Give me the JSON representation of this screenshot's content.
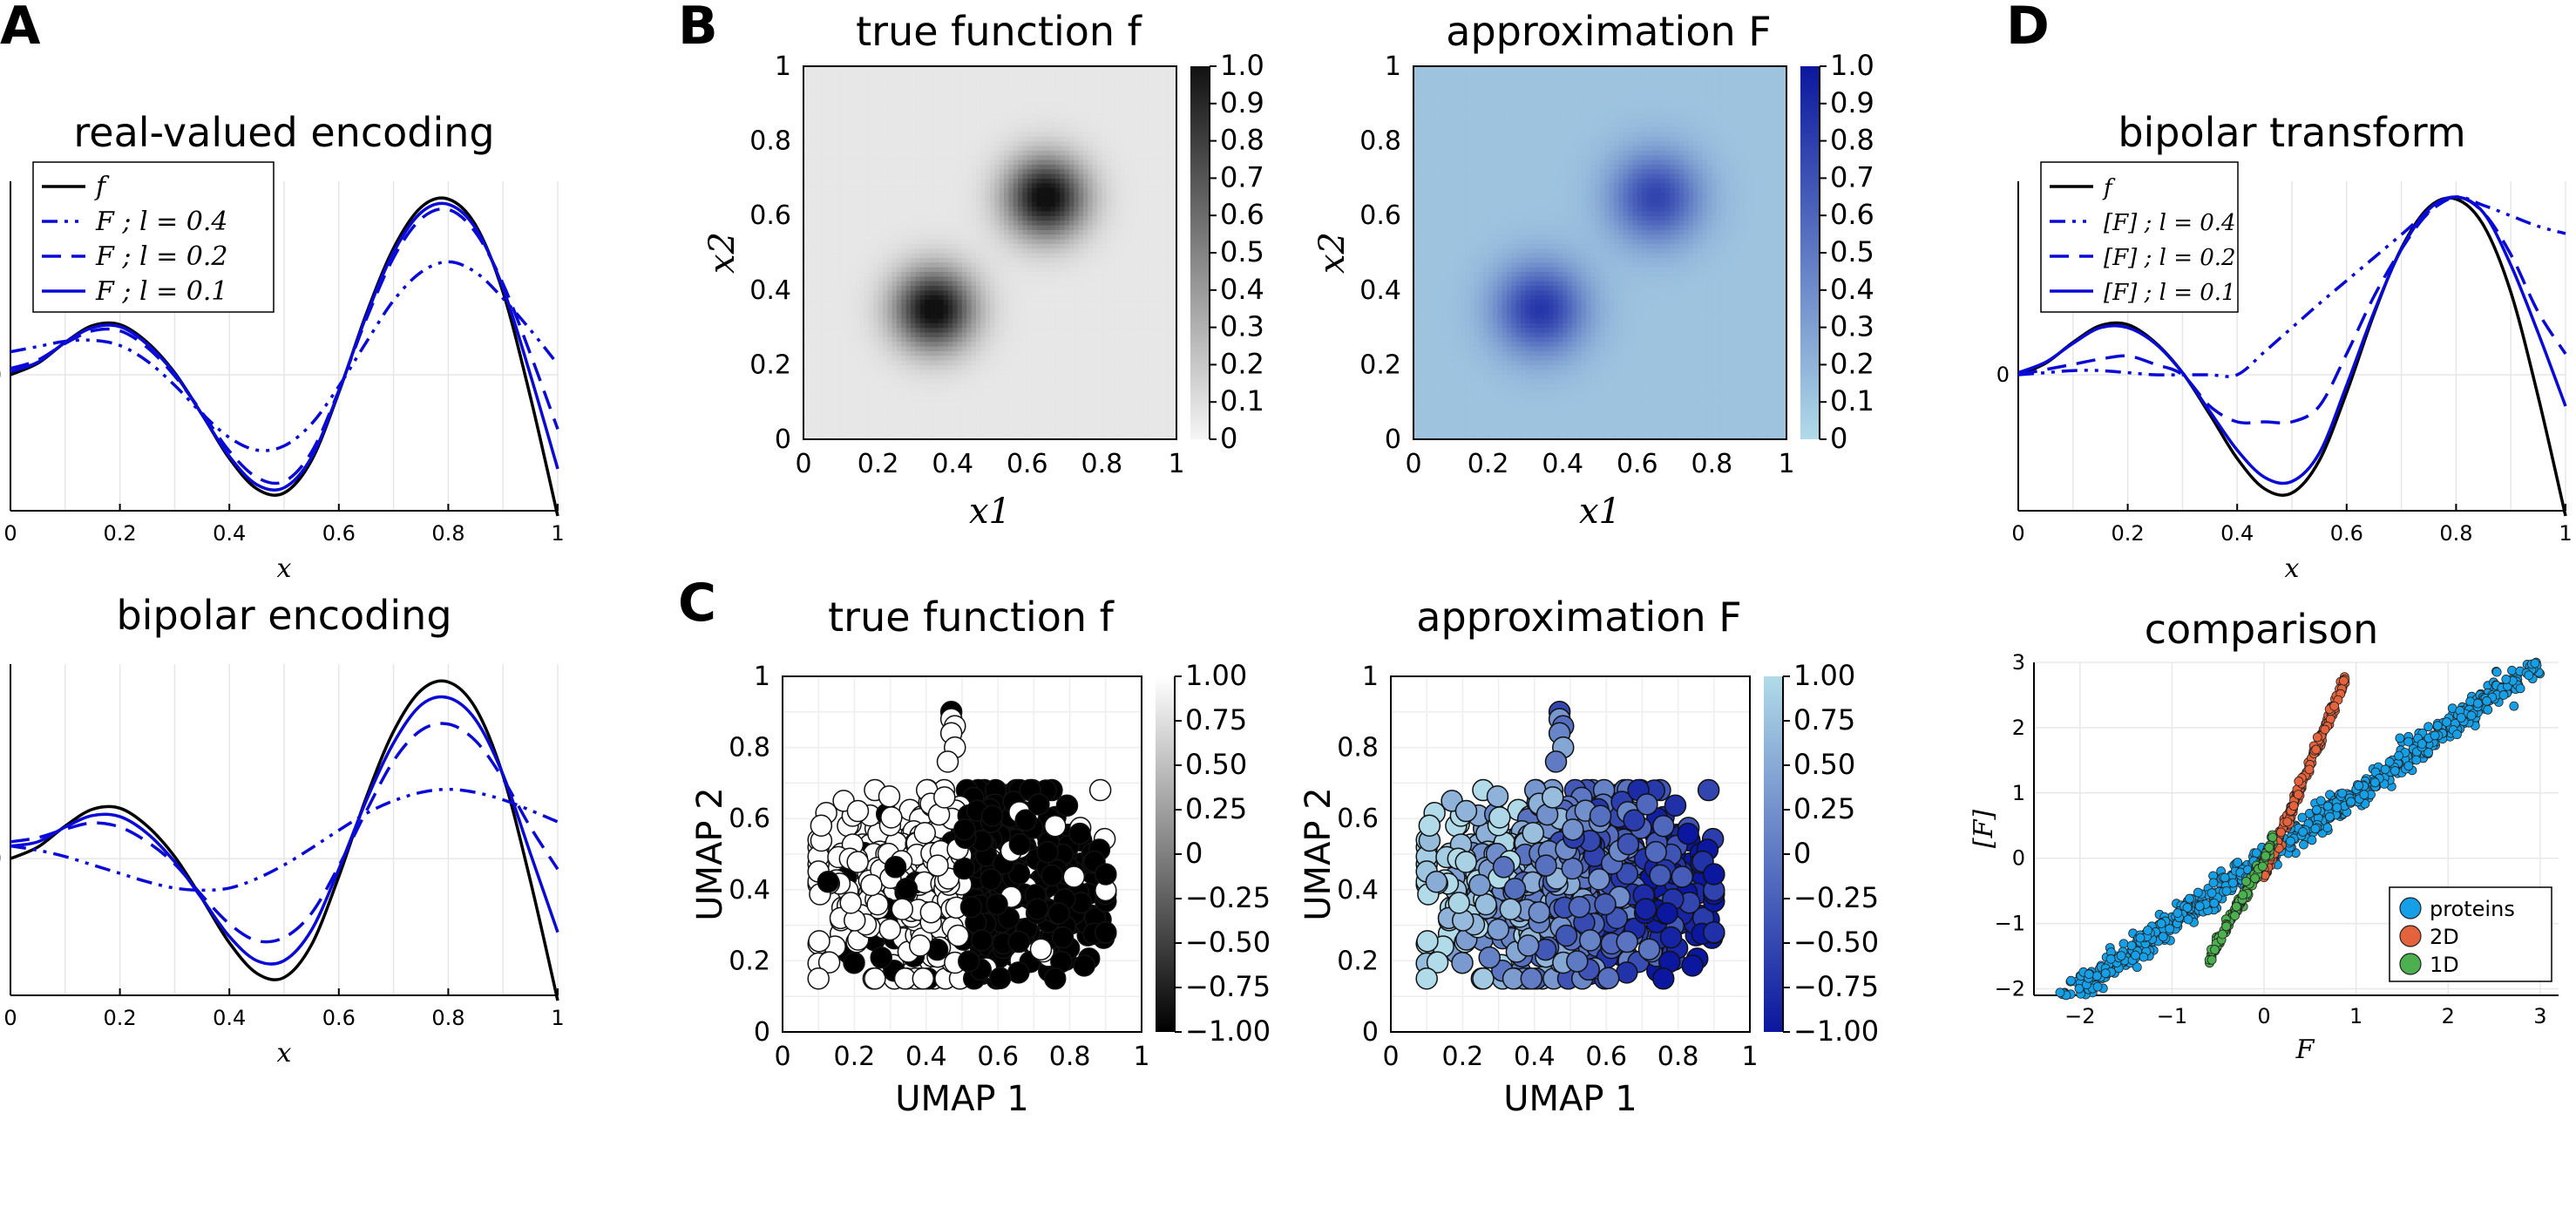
{
  "figure": {
    "panel_labels": [
      "A",
      "B",
      "C",
      "D"
    ]
  },
  "colors": {
    "blue": "#0a0ad6",
    "black": "#000000",
    "heat_blue_low": "#b1dbe8",
    "heat_blue_high": "#0b179e",
    "scatter_proteins": "#159fe6",
    "scatter_2d": "#e5633c",
    "scatter_1d": "#4bb04d"
  },
  "chart_data": [
    {
      "id": "A_top",
      "type": "line",
      "title": "real-valued encoding",
      "xlabel": "x",
      "ylabel": "",
      "xlim": [
        0,
        1
      ],
      "ylim": [
        -1.3,
        1.85
      ],
      "xticks": [
        "0",
        "0.2",
        "0.4",
        "0.6",
        "0.8",
        "1"
      ],
      "yticks": [
        "0"
      ],
      "grid": true,
      "legend": "top-left",
      "legend_entries": [
        "f",
        "F ; l = 0.4",
        "F ; l = 0.2",
        "F ; l = 0.1"
      ],
      "x": [
        0,
        0.05,
        0.1,
        0.15,
        0.2,
        0.25,
        0.3,
        0.35,
        0.4,
        0.45,
        0.5,
        0.55,
        0.6,
        0.65,
        0.7,
        0.75,
        0.8,
        0.85,
        0.9,
        0.95,
        1.0
      ],
      "series": [
        {
          "name": "f",
          "values": [
            0.0,
            0.11,
            0.31,
            0.47,
            0.48,
            0.31,
            0.02,
            -0.38,
            -0.8,
            -1.09,
            -1.13,
            -0.82,
            -0.17,
            0.58,
            1.21,
            1.6,
            1.68,
            1.43,
            0.79,
            -0.21,
            -1.35
          ]
        },
        {
          "name": "F ; l = 0.4",
          "values": [
            0.22,
            0.27,
            0.32,
            0.33,
            0.28,
            0.13,
            -0.1,
            -0.37,
            -0.6,
            -0.72,
            -0.68,
            -0.47,
            -0.11,
            0.31,
            0.71,
            0.98,
            1.08,
            0.98,
            0.73,
            0.43,
            0.1
          ]
        },
        {
          "name": "F ; l = 0.2",
          "values": [
            0.06,
            0.14,
            0.3,
            0.42,
            0.42,
            0.26,
            -0.01,
            -0.36,
            -0.73,
            -0.98,
            -1.02,
            -0.74,
            -0.15,
            0.53,
            1.12,
            1.49,
            1.58,
            1.36,
            0.87,
            0.2,
            -0.52
          ]
        },
        {
          "name": "F ; l = 0.1",
          "values": [
            0.03,
            0.12,
            0.31,
            0.45,
            0.46,
            0.29,
            0.01,
            -0.38,
            -0.78,
            -1.05,
            -1.08,
            -0.79,
            -0.16,
            0.56,
            1.17,
            1.55,
            1.63,
            1.4,
            0.83,
            0.0,
            -0.9
          ]
        }
      ]
    },
    {
      "id": "A_bottom",
      "type": "line",
      "title": "bipolar encoding",
      "xlabel": "x",
      "ylabel": "",
      "xlim": [
        0,
        1
      ],
      "ylim": [
        -1.3,
        1.85
      ],
      "xticks": [
        "0",
        "0.2",
        "0.4",
        "0.6",
        "0.8",
        "1"
      ],
      "yticks": [
        "0"
      ],
      "grid": true,
      "x": [
        0,
        0.05,
        0.1,
        0.15,
        0.2,
        0.25,
        0.3,
        0.35,
        0.4,
        0.45,
        0.5,
        0.55,
        0.6,
        0.65,
        0.7,
        0.75,
        0.8,
        0.85,
        0.9,
        0.95,
        1.0
      ],
      "series": [
        {
          "name": "f",
          "values": [
            0.0,
            0.11,
            0.31,
            0.47,
            0.48,
            0.31,
            0.02,
            -0.38,
            -0.8,
            -1.09,
            -1.13,
            -0.82,
            -0.17,
            0.58,
            1.21,
            1.6,
            1.68,
            1.43,
            0.79,
            -0.21,
            -1.35
          ]
        },
        {
          "name": "F ; l = 0.4",
          "values": [
            0.12,
            0.08,
            0.02,
            -0.06,
            -0.14,
            -0.22,
            -0.28,
            -0.3,
            -0.28,
            -0.19,
            -0.06,
            0.1,
            0.27,
            0.43,
            0.55,
            0.63,
            0.66,
            0.63,
            0.56,
            0.46,
            0.35
          ]
        },
        {
          "name": "F ; l = 0.2",
          "values": [
            0.16,
            0.2,
            0.28,
            0.34,
            0.3,
            0.16,
            -0.05,
            -0.35,
            -0.62,
            -0.78,
            -0.75,
            -0.52,
            -0.07,
            0.45,
            0.93,
            1.22,
            1.28,
            1.12,
            0.76,
            0.3,
            -0.1
          ]
        },
        {
          "name": "F ; l = 0.1",
          "values": [
            0.12,
            0.16,
            0.3,
            0.41,
            0.4,
            0.24,
            -0.03,
            -0.38,
            -0.74,
            -0.97,
            -0.97,
            -0.68,
            -0.1,
            0.55,
            1.1,
            1.46,
            1.53,
            1.32,
            0.8,
            0.05,
            -0.7
          ]
        }
      ]
    },
    {
      "id": "B_true",
      "type": "heatmap",
      "title": "true function f",
      "xlabel": "x1",
      "ylabel": "x2",
      "xlim": [
        0,
        1
      ],
      "ylim": [
        0,
        1
      ],
      "xticks": [
        "0",
        "0.2",
        "0.4",
        "0.6",
        "0.8",
        "1"
      ],
      "yticks": [
        "0",
        "0.2",
        "0.4",
        "0.6",
        "0.8",
        "1"
      ],
      "colorbar_ticks": [
        "0",
        "0.1",
        "0.2",
        "0.3",
        "0.4",
        "0.5",
        "0.6",
        "0.7",
        "0.8",
        "0.9",
        "1.0"
      ],
      "colormap": "white-to-black",
      "bumps": [
        {
          "cx": 0.35,
          "cy": 0.35,
          "sigma": 0.075,
          "amp": 1.0
        },
        {
          "cx": 0.65,
          "cy": 0.65,
          "sigma": 0.075,
          "amp": 1.0
        }
      ],
      "background_value": 0.06
    },
    {
      "id": "B_approx",
      "type": "heatmap",
      "title": "approximation F",
      "xlabel": "x1",
      "ylabel": "x2",
      "xlim": [
        0,
        1
      ],
      "ylim": [
        0,
        1
      ],
      "xticks": [
        "0",
        "0.2",
        "0.4",
        "0.6",
        "0.8",
        "1"
      ],
      "yticks": [
        "0",
        "0.2",
        "0.4",
        "0.6",
        "0.8",
        "1"
      ],
      "colorbar_ticks": [
        "0",
        "0.1",
        "0.2",
        "0.3",
        "0.4",
        "0.5",
        "0.6",
        "0.7",
        "0.8",
        "0.9",
        "1.0"
      ],
      "colormap": "lightblue-to-darkblue",
      "bumps": [
        {
          "cx": 0.34,
          "cy": 0.35,
          "sigma": 0.085,
          "amp": 0.72
        },
        {
          "cx": 0.65,
          "cy": 0.65,
          "sigma": 0.085,
          "amp": 0.65
        }
      ],
      "background_value": 0.12
    },
    {
      "id": "C_true",
      "type": "scatter",
      "title": "true function f",
      "xlabel": "UMAP 1",
      "ylabel": "UMAP 2",
      "xlim": [
        0,
        1
      ],
      "ylim": [
        0,
        1
      ],
      "xticks": [
        "0",
        "0.2",
        "0.4",
        "0.6",
        "0.8",
        "1"
      ],
      "yticks": [
        "0",
        "0.2",
        "0.4",
        "0.6",
        "0.8",
        "1"
      ],
      "colorbar_ticks": [
        "1.00",
        "0.75",
        "0.50",
        "0.25",
        "0",
        "−0.25",
        "−0.50",
        "−0.75",
        "−1.00"
      ],
      "colormap": "black-to-white",
      "cloud": {
        "center": [
          0.5,
          0.42
        ],
        "spread": [
          0.18,
          0.12
        ],
        "n": 850,
        "tail": [
          [
            0.47,
            0.9
          ],
          [
            0.47,
            0.88
          ],
          [
            0.48,
            0.86
          ],
          [
            0.47,
            0.84
          ],
          [
            0.48,
            0.8
          ],
          [
            0.46,
            0.76
          ]
        ]
      }
    },
    {
      "id": "C_approx",
      "type": "scatter",
      "title": "approximation F",
      "xlabel": "UMAP 1",
      "ylabel": "UMAP 2",
      "xlim": [
        0,
        1
      ],
      "ylim": [
        0,
        1
      ],
      "xticks": [
        "0",
        "0.2",
        "0.4",
        "0.6",
        "0.8",
        "1"
      ],
      "yticks": [
        "0",
        "0.2",
        "0.4",
        "0.6",
        "0.8",
        "1"
      ],
      "colorbar_ticks": [
        "1.00",
        "0.75",
        "0.50",
        "0.25",
        "0",
        "−0.25",
        "−0.50",
        "−0.75",
        "−1.00"
      ],
      "colormap": "darkblue-to-lightblue",
      "cloud": {
        "center": [
          0.5,
          0.42
        ],
        "spread": [
          0.18,
          0.12
        ],
        "n": 850,
        "tail": [
          [
            0.47,
            0.9
          ],
          [
            0.47,
            0.88
          ],
          [
            0.48,
            0.86
          ],
          [
            0.47,
            0.84
          ],
          [
            0.48,
            0.8
          ],
          [
            0.46,
            0.76
          ]
        ]
      }
    },
    {
      "id": "D_top",
      "type": "line",
      "title": "bipolar transform",
      "xlabel": "x",
      "ylabel": "",
      "xlim": [
        0,
        1
      ],
      "ylim": [
        -1.3,
        1.85
      ],
      "xticks": [
        "0",
        "0.2",
        "0.4",
        "0.6",
        "0.8",
        "1"
      ],
      "yticks": [
        "0"
      ],
      "grid": true,
      "legend": "top-left",
      "legend_entries": [
        "f",
        "[F] ; l = 0.4",
        "[F] ; l = 0.2",
        "[F] ; l = 0.1"
      ],
      "x": [
        0,
        0.05,
        0.1,
        0.15,
        0.2,
        0.25,
        0.3,
        0.35,
        0.4,
        0.45,
        0.5,
        0.55,
        0.6,
        0.65,
        0.7,
        0.75,
        0.8,
        0.85,
        0.9,
        0.95,
        1.0
      ],
      "series": [
        {
          "name": "f",
          "values": [
            0.0,
            0.11,
            0.31,
            0.47,
            0.48,
            0.31,
            0.02,
            -0.38,
            -0.8,
            -1.09,
            -1.13,
            -0.82,
            -0.17,
            0.58,
            1.21,
            1.6,
            1.68,
            1.43,
            0.79,
            -0.21,
            -1.35
          ]
        },
        {
          "name": "[F] ; l = 0.4",
          "values": [
            0.0,
            0.02,
            0.04,
            0.04,
            0.02,
            0.0,
            0.0,
            0.0,
            0.0,
            0.22,
            0.45,
            0.68,
            0.9,
            1.12,
            1.34,
            1.56,
            1.7,
            1.62,
            1.52,
            1.42,
            1.35
          ]
        },
        {
          "name": "[F] ; l = 0.2",
          "values": [
            0.0,
            0.05,
            0.1,
            0.15,
            0.18,
            0.1,
            0.0,
            -0.3,
            -0.45,
            -0.45,
            -0.45,
            -0.3,
            0.2,
            0.75,
            1.2,
            1.55,
            1.7,
            1.55,
            1.15,
            0.6,
            0.2
          ]
        },
        {
          "name": "[F] ; l = 0.1",
          "values": [
            0.02,
            0.12,
            0.3,
            0.45,
            0.45,
            0.3,
            0.02,
            -0.35,
            -0.72,
            -0.98,
            -1.02,
            -0.75,
            -0.1,
            0.6,
            1.2,
            1.58,
            1.7,
            1.55,
            1.05,
            0.4,
            -0.3
          ]
        }
      ]
    },
    {
      "id": "D_bottom",
      "type": "scatter",
      "title": "comparison",
      "xlabel": "F",
      "ylabel": "[F]",
      "xlim": [
        -2.5,
        3.2
      ],
      "ylim": [
        -2.1,
        3.0
      ],
      "xticks": [
        -2,
        -1,
        0,
        1,
        2,
        3
      ],
      "yticks": [
        -2,
        -1,
        0,
        1,
        2,
        3
      ],
      "grid": true,
      "legend": "bottom-right",
      "series": [
        {
          "name": "proteins",
          "slope": 1.0,
          "xrange": [
            -2.3,
            3.0
          ],
          "noise": 0.12,
          "n": 800
        },
        {
          "name": "2D",
          "slope": 3.4,
          "xrange": [
            0.0,
            0.88
          ],
          "intercept": -0.25,
          "noise": 0.06,
          "n": 220
        },
        {
          "name": "1D",
          "slope": 2.6,
          "xrange": [
            -0.6,
            0.1
          ],
          "intercept": 0.0,
          "noise": 0.05,
          "n": 160
        }
      ]
    }
  ]
}
